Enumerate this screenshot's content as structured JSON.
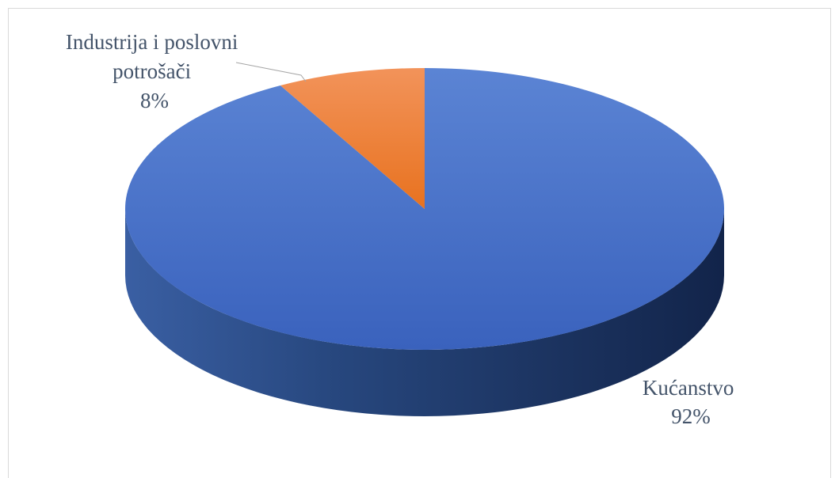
{
  "chart_data": {
    "type": "pie",
    "style": "3d",
    "slices": [
      {
        "label": "Kućanstvo",
        "value": 92,
        "value_label": "92%",
        "color": "#4472c4"
      },
      {
        "label": "Industrija i poslovni potrošači",
        "value": 8,
        "value_label": "8%",
        "color": "#ed7d31"
      }
    ],
    "data_labels": [
      {
        "lines": [
          "Kućanstvo",
          "92%"
        ]
      },
      {
        "lines": [
          "Industrija i poslovni",
          "potrošači",
          "8%"
        ]
      }
    ],
    "legend": "none",
    "leader_line": true
  }
}
